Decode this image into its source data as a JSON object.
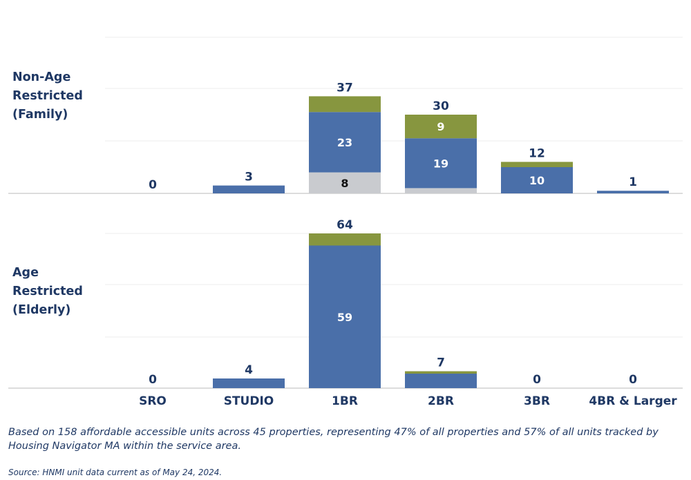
{
  "chart_data": {
    "type": "bar",
    "stacked": true,
    "categories": [
      "SRO",
      "STUDIO",
      "1BR",
      "2BR",
      "3BR",
      "4BR & Larger"
    ],
    "series_colors": [
      "#c9cbcf",
      "#4a6fa9",
      "#87963f"
    ],
    "panels": [
      {
        "row_label": "Non-Age\nRestricted\n(Family)",
        "ylim": [
          0,
          40
        ],
        "grid": true,
        "totals": [
          0,
          3,
          37,
          30,
          12,
          1
        ],
        "segments": [
          [
            0,
            0,
            8,
            2,
            0,
            0
          ],
          [
            0,
            3,
            23,
            19,
            10,
            1
          ],
          [
            0,
            0,
            6,
            9,
            2,
            0
          ]
        ],
        "segment_labels": [
          [
            null,
            null,
            "8",
            null,
            null,
            null
          ],
          [
            null,
            null,
            "23",
            "19",
            "10",
            null
          ],
          [
            null,
            null,
            null,
            "9",
            null,
            null
          ]
        ]
      },
      {
        "row_label": "Age\nRestricted\n(Elderly)",
        "ylim": [
          0,
          64
        ],
        "grid": true,
        "totals": [
          0,
          4,
          64,
          7,
          0,
          0
        ],
        "segments": [
          [
            0,
            0,
            0,
            0,
            0,
            0
          ],
          [
            0,
            4,
            59,
            6,
            0,
            0
          ],
          [
            0,
            0,
            5,
            1,
            0,
            0
          ]
        ],
        "segment_labels": [
          [
            null,
            null,
            null,
            null,
            null,
            null
          ],
          [
            null,
            null,
            "59",
            null,
            null,
            null
          ],
          [
            null,
            null,
            null,
            null,
            null,
            null
          ]
        ]
      }
    ]
  },
  "footnote": "Based on 158 affordable accessible units across 45 properties, representing 47% of all properties and 57% of all units tracked by Housing Navigator MA within the service area.",
  "source": "Source: HNMI unit data current as of May 24, 2024."
}
